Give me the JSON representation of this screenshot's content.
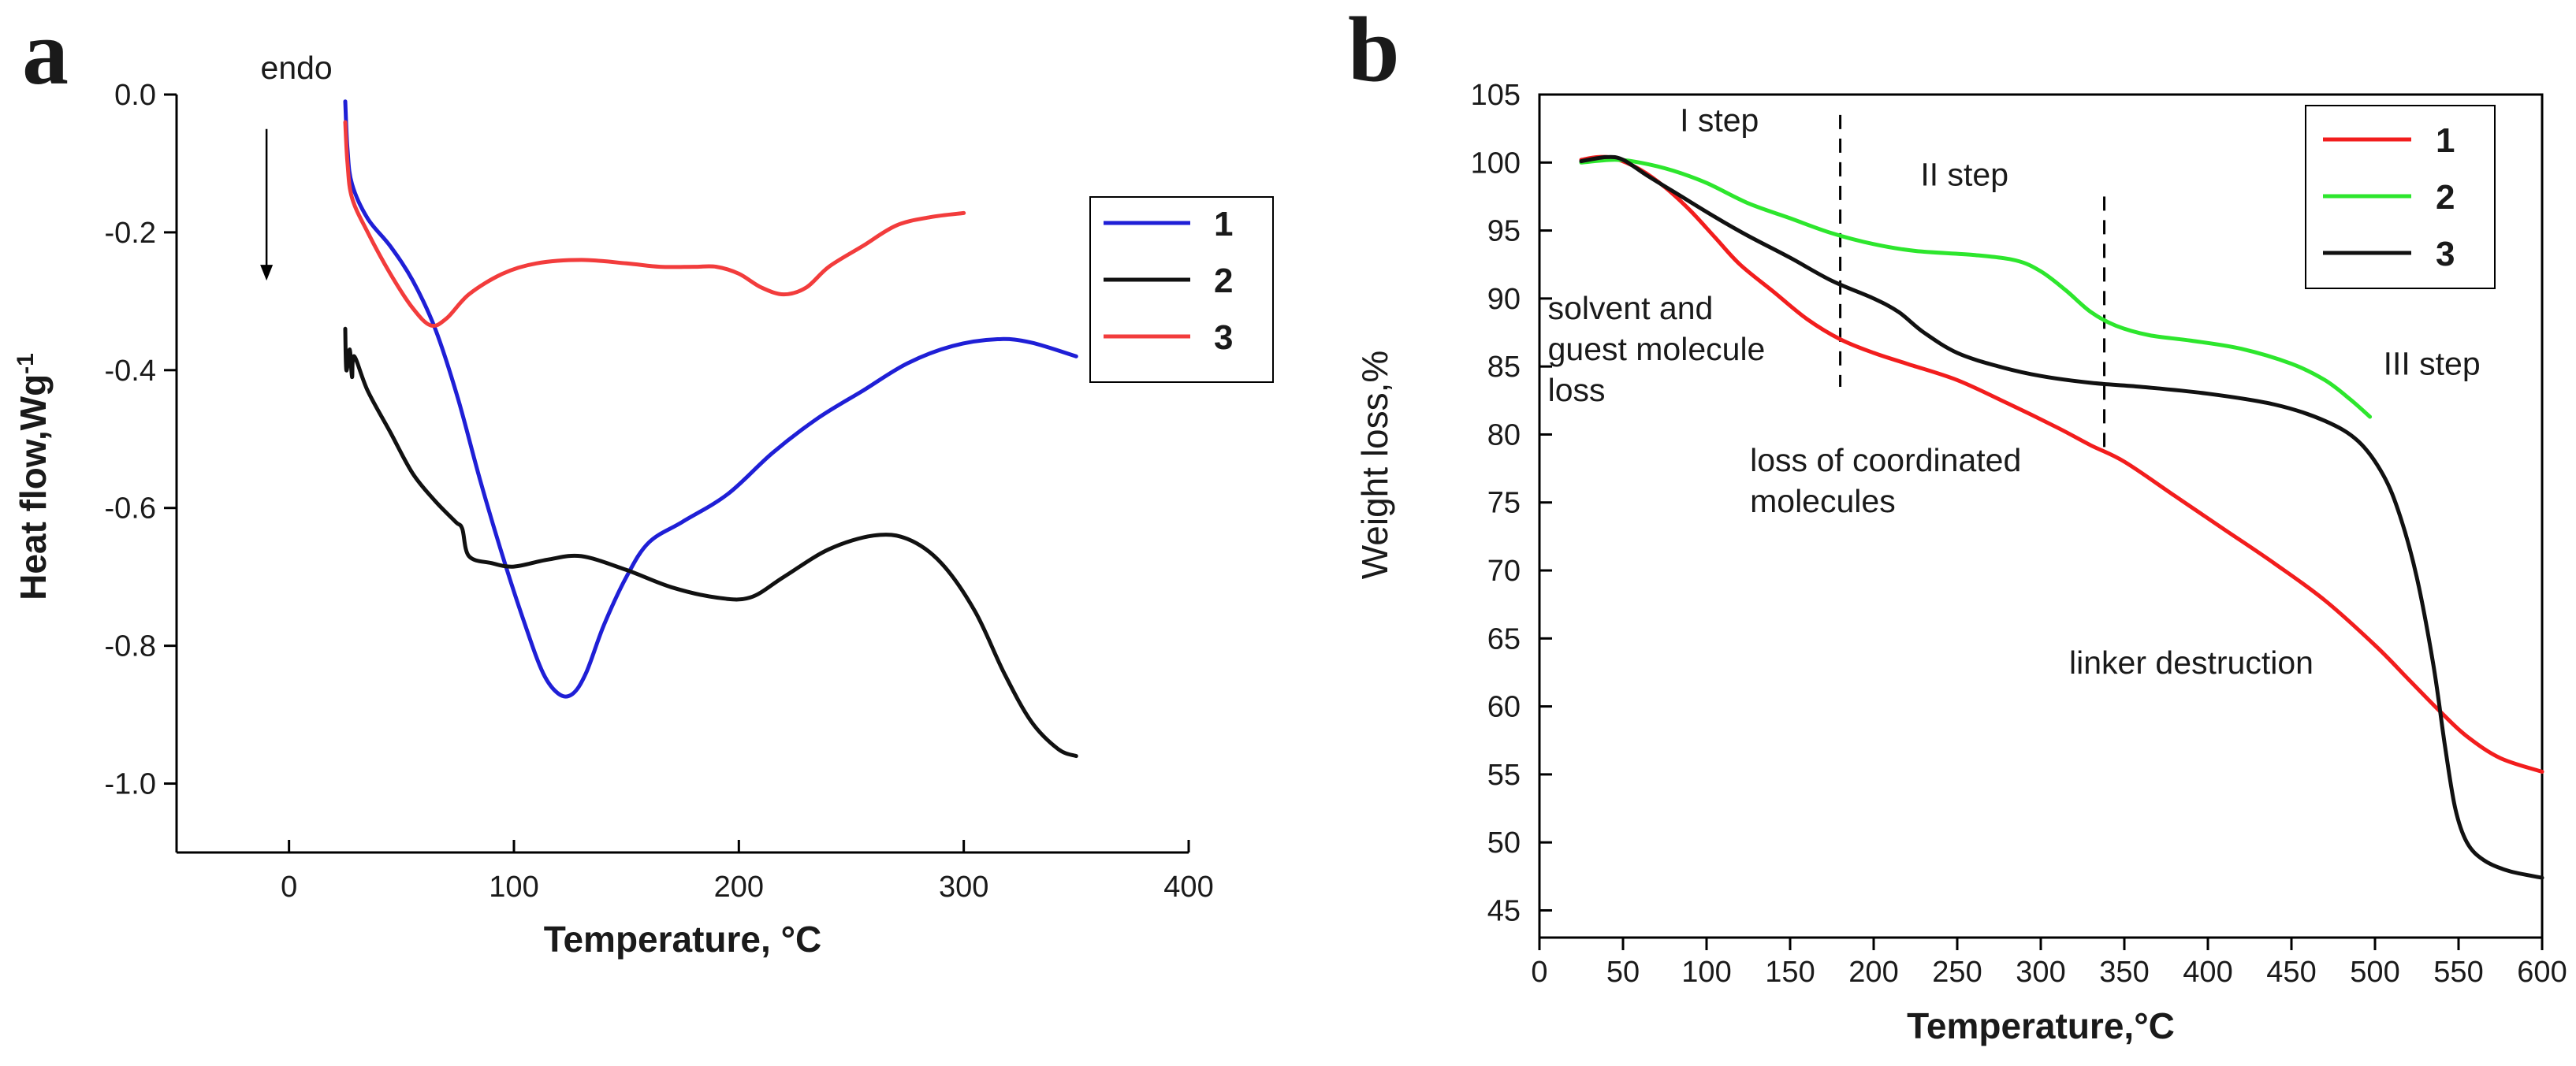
{
  "chart_data": [
    {
      "id": "a",
      "panel_label": "a",
      "type": "line",
      "title": "",
      "xlabel": "Temperature, °C",
      "ylabel": "Heat flow,Wg",
      "ylabel_superscript": "-1",
      "xlim": [
        -50,
        400
      ],
      "ylim": [
        -1.1,
        0.0
      ],
      "xticks": [
        0,
        100,
        200,
        300,
        400
      ],
      "yticks": [
        0.0,
        -0.2,
        -0.4,
        -0.6,
        -0.8,
        -1.0
      ],
      "ytick_labels": [
        "0.0",
        "-0.2",
        "-0.4",
        "-0.6",
        "-0.8",
        "-1.0"
      ],
      "grid": false,
      "legend": "top-right",
      "annotations": [
        {
          "text": "endo",
          "arrow": "down",
          "x": -10,
          "y_text": 0.0,
          "y_from": -0.05,
          "y_to": -0.27
        }
      ],
      "series": [
        {
          "name": "1",
          "color": "#1f1fd6",
          "points": [
            [
              25,
              -0.01
            ],
            [
              26,
              -0.08
            ],
            [
              28,
              -0.13
            ],
            [
              35,
              -0.18
            ],
            [
              45,
              -0.22
            ],
            [
              55,
              -0.27
            ],
            [
              65,
              -0.34
            ],
            [
              75,
              -0.44
            ],
            [
              85,
              -0.56
            ],
            [
              95,
              -0.67
            ],
            [
              105,
              -0.77
            ],
            [
              113,
              -0.84
            ],
            [
              120,
              -0.87
            ],
            [
              126,
              -0.87
            ],
            [
              132,
              -0.84
            ],
            [
              140,
              -0.77
            ],
            [
              150,
              -0.7
            ],
            [
              160,
              -0.65
            ],
            [
              175,
              -0.62
            ],
            [
              195,
              -0.58
            ],
            [
              215,
              -0.52
            ],
            [
              235,
              -0.47
            ],
            [
              255,
              -0.43
            ],
            [
              275,
              -0.39
            ],
            [
              295,
              -0.365
            ],
            [
              315,
              -0.355
            ],
            [
              330,
              -0.36
            ],
            [
              350,
              -0.38
            ]
          ]
        },
        {
          "name": "2",
          "color": "#111111",
          "points": [
            [
              25,
              -0.34
            ],
            [
              25.5,
              -0.4
            ],
            [
              27,
              -0.37
            ],
            [
              28,
              -0.41
            ],
            [
              29,
              -0.38
            ],
            [
              35,
              -0.43
            ],
            [
              45,
              -0.49
            ],
            [
              55,
              -0.55
            ],
            [
              65,
              -0.59
            ],
            [
              74,
              -0.62
            ],
            [
              77,
              -0.63
            ],
            [
              80,
              -0.67
            ],
            [
              90,
              -0.68
            ],
            [
              100,
              -0.685
            ],
            [
              115,
              -0.675
            ],
            [
              130,
              -0.67
            ],
            [
              150,
              -0.69
            ],
            [
              170,
              -0.715
            ],
            [
              190,
              -0.73
            ],
            [
              205,
              -0.73
            ],
            [
              220,
              -0.7
            ],
            [
              240,
              -0.66
            ],
            [
              260,
              -0.64
            ],
            [
              275,
              -0.645
            ],
            [
              290,
              -0.68
            ],
            [
              305,
              -0.75
            ],
            [
              318,
              -0.84
            ],
            [
              330,
              -0.91
            ],
            [
              342,
              -0.95
            ],
            [
              350,
              -0.96
            ]
          ]
        },
        {
          "name": "3",
          "color": "#f23c3c",
          "points": [
            [
              25,
              -0.04
            ],
            [
              26,
              -0.1
            ],
            [
              28,
              -0.15
            ],
            [
              35,
              -0.2
            ],
            [
              45,
              -0.26
            ],
            [
              55,
              -0.31
            ],
            [
              63,
              -0.335
            ],
            [
              70,
              -0.325
            ],
            [
              80,
              -0.29
            ],
            [
              95,
              -0.26
            ],
            [
              110,
              -0.245
            ],
            [
              130,
              -0.24
            ],
            [
              150,
              -0.245
            ],
            [
              165,
              -0.25
            ],
            [
              180,
              -0.25
            ],
            [
              190,
              -0.25
            ],
            [
              200,
              -0.26
            ],
            [
              210,
              -0.28
            ],
            [
              220,
              -0.29
            ],
            [
              230,
              -0.28
            ],
            [
              240,
              -0.25
            ],
            [
              255,
              -0.22
            ],
            [
              270,
              -0.19
            ],
            [
              285,
              -0.178
            ],
            [
              300,
              -0.172
            ]
          ]
        }
      ]
    },
    {
      "id": "b",
      "panel_label": "b",
      "type": "line",
      "title": "",
      "xlabel": "Temperature,°C",
      "ylabel": "Weight loss,%",
      "xlim": [
        0,
        600
      ],
      "ylim": [
        43,
        105
      ],
      "xticks": [
        0,
        50,
        100,
        150,
        200,
        250,
        300,
        350,
        400,
        450,
        500,
        550,
        600
      ],
      "yticks": [
        45,
        50,
        55,
        60,
        65,
        70,
        75,
        80,
        85,
        90,
        95,
        100,
        105
      ],
      "grid": false,
      "legend": "top-right",
      "step_boundaries": [
        {
          "x": 180,
          "y_from": 83.5,
          "y_to": 103.5
        },
        {
          "x": 338,
          "y_from": 78.5,
          "y_to": 97.5
        }
      ],
      "annotations": [
        {
          "lines": [
            "I step"
          ],
          "x": 84,
          "y": 102.3
        },
        {
          "lines": [
            "II step"
          ],
          "x": 228,
          "y": 98.3
        },
        {
          "lines": [
            "III step"
          ],
          "x": 505,
          "y": 84.4
        },
        {
          "lines": [
            "solvent and",
            "guest molecule",
            "loss"
          ],
          "x": 5,
          "y": 88.5
        },
        {
          "lines": [
            "loss of coordinated",
            "molecules"
          ],
          "x": 126,
          "y": 77.3
        },
        {
          "lines": [
            "linker destruction"
          ],
          "x": 317,
          "y": 62.4
        }
      ],
      "series": [
        {
          "name": "1",
          "color": "#f21d1d",
          "points": [
            [
              25,
              100.2
            ],
            [
              35,
              100.4
            ],
            [
              45,
              100.3
            ],
            [
              60,
              99.5
            ],
            [
              75,
              98.2
            ],
            [
              90,
              96.5
            ],
            [
              105,
              94.5
            ],
            [
              120,
              92.5
            ],
            [
              140,
              90.5
            ],
            [
              160,
              88.5
            ],
            [
              180,
              87.0
            ],
            [
              200,
              86.0
            ],
            [
              220,
              85.2
            ],
            [
              250,
              84.0
            ],
            [
              280,
              82.3
            ],
            [
              310,
              80.5
            ],
            [
              330,
              79.2
            ],
            [
              350,
              78.0
            ],
            [
              380,
              75.5
            ],
            [
              410,
              73.0
            ],
            [
              440,
              70.5
            ],
            [
              470,
              67.8
            ],
            [
              500,
              64.5
            ],
            [
              520,
              62.0
            ],
            [
              540,
              59.5
            ],
            [
              555,
              57.8
            ],
            [
              575,
              56.2
            ],
            [
              600,
              55.2
            ]
          ]
        },
        {
          "name": "2",
          "color": "#2de62d",
          "points": [
            [
              25,
              100.0
            ],
            [
              45,
              100.2
            ],
            [
              60,
              100.0
            ],
            [
              80,
              99.4
            ],
            [
              100,
              98.5
            ],
            [
              125,
              97.0
            ],
            [
              150,
              95.9
            ],
            [
              175,
              94.8
            ],
            [
              200,
              94.0
            ],
            [
              225,
              93.5
            ],
            [
              260,
              93.2
            ],
            [
              285,
              92.8
            ],
            [
              300,
              92.0
            ],
            [
              315,
              90.6
            ],
            [
              330,
              89.0
            ],
            [
              345,
              88.0
            ],
            [
              365,
              87.3
            ],
            [
              390,
              86.9
            ],
            [
              420,
              86.3
            ],
            [
              450,
              85.2
            ],
            [
              470,
              84.0
            ],
            [
              485,
              82.6
            ],
            [
              497,
              81.3
            ]
          ]
        },
        {
          "name": "3",
          "color": "#111111",
          "points": [
            [
              25,
              100.1
            ],
            [
              40,
              100.4
            ],
            [
              50,
              100.2
            ],
            [
              65,
              99.0
            ],
            [
              85,
              97.5
            ],
            [
              105,
              96.0
            ],
            [
              125,
              94.6
            ],
            [
              150,
              93.0
            ],
            [
              175,
              91.3
            ],
            [
              200,
              90.0
            ],
            [
              215,
              89.0
            ],
            [
              230,
              87.5
            ],
            [
              250,
              86.0
            ],
            [
              275,
              85.0
            ],
            [
              300,
              84.3
            ],
            [
              330,
              83.8
            ],
            [
              360,
              83.5
            ],
            [
              400,
              83.0
            ],
            [
              440,
              82.2
            ],
            [
              470,
              81.0
            ],
            [
              490,
              79.5
            ],
            [
              505,
              77.0
            ],
            [
              515,
              74.0
            ],
            [
              525,
              69.5
            ],
            [
              535,
              63.0
            ],
            [
              542,
              57.0
            ],
            [
              548,
              52.5
            ],
            [
              555,
              50.0
            ],
            [
              565,
              48.7
            ],
            [
              580,
              47.9
            ],
            [
              600,
              47.4
            ]
          ]
        }
      ]
    }
  ]
}
